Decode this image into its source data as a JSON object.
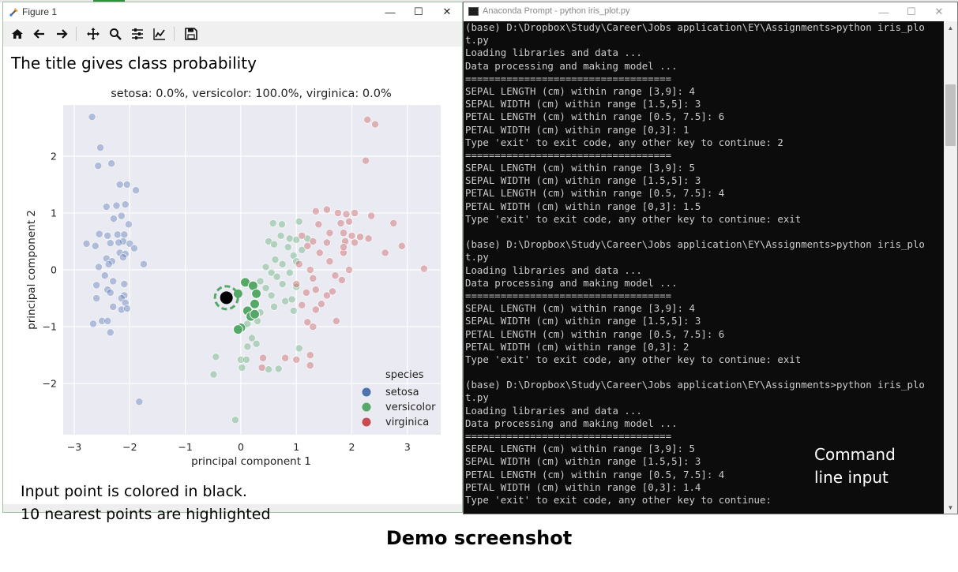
{
  "figure_window": {
    "title": "Figure 1",
    "window_buttons": {
      "minimize": "—",
      "maximize": "☐",
      "close": "✕"
    },
    "toolbar": [
      {
        "name": "home-icon"
      },
      {
        "name": "back-icon"
      },
      {
        "name": "forward-icon"
      },
      {
        "name": "pan-icon"
      },
      {
        "name": "zoom-icon"
      },
      {
        "name": "configure-subplots-icon"
      },
      {
        "name": "edit-axis-icon"
      },
      {
        "name": "save-icon"
      }
    ]
  },
  "annotations": {
    "top_note": "The title gives class probability",
    "bottom_note_1": "Input point is colored in black.",
    "bottom_note_2": "10 nearest points are highlighted",
    "command_label_1": "Command",
    "command_label_2": "line input",
    "caption": "Demo screenshot"
  },
  "chart_data": {
    "type": "scatter",
    "title": "setosa: 0.0%, versicolor: 100.0%, virginica: 0.0%",
    "xlabel": "principal component 1",
    "ylabel": "principal component 2",
    "xlim": [
      -3.2,
      3.6
    ],
    "ylim": [
      -2.9,
      2.9
    ],
    "xticks": [
      -3,
      -2,
      -1,
      0,
      1,
      2,
      3
    ],
    "yticks": [
      -2,
      -1,
      0,
      1,
      2
    ],
    "grid": true,
    "legend": {
      "title": "species",
      "position": "bottom-right",
      "entries": [
        "setosa",
        "versicolor",
        "virginica"
      ]
    },
    "colors": {
      "setosa": "#4c72b0",
      "versicolor": "#55a868",
      "virginica": "#c44e52",
      "input": "#000000"
    },
    "series": [
      {
        "name": "setosa",
        "points": [
          [
            -2.68,
            2.69
          ],
          [
            -2.53,
            2.15
          ],
          [
            -2.57,
            1.83
          ],
          [
            -2.33,
            1.87
          ],
          [
            -2.18,
            1.5
          ],
          [
            -2.05,
            1.5
          ],
          [
            -2.24,
            1.13
          ],
          [
            -2.08,
            1.15
          ],
          [
            -1.89,
            1.4
          ],
          [
            -2.42,
            1.11
          ],
          [
            -2.29,
            0.9
          ],
          [
            -2.15,
            0.95
          ],
          [
            -2.02,
            0.8
          ],
          [
            -2.55,
            0.63
          ],
          [
            -2.4,
            0.6
          ],
          [
            -2.22,
            0.62
          ],
          [
            -2.1,
            0.62
          ],
          [
            -2.12,
            0.5
          ],
          [
            -2.78,
            0.46
          ],
          [
            -2.62,
            0.42
          ],
          [
            -2.35,
            0.47
          ],
          [
            -2.2,
            0.48
          ],
          [
            -2.0,
            0.46
          ],
          [
            -1.92,
            0.38
          ],
          [
            -2.18,
            0.3
          ],
          [
            -2.08,
            0.28
          ],
          [
            -2.42,
            0.2
          ],
          [
            -2.12,
            0.22
          ],
          [
            -2.32,
            0.15
          ],
          [
            -2.56,
            0.05
          ],
          [
            -2.38,
            0.1
          ],
          [
            -1.75,
            0.1
          ],
          [
            -2.45,
            -0.1
          ],
          [
            -2.3,
            -0.2
          ],
          [
            -2.1,
            -0.25
          ],
          [
            -2.6,
            -0.27
          ],
          [
            -2.4,
            -0.35
          ],
          [
            -2.35,
            -0.4
          ],
          [
            -2.1,
            -0.45
          ],
          [
            -2.15,
            -0.5
          ],
          [
            -2.08,
            -0.58
          ],
          [
            -2.6,
            -0.5
          ],
          [
            -2.3,
            -0.65
          ],
          [
            -2.15,
            -0.7
          ],
          [
            -2.05,
            -0.68
          ],
          [
            -2.5,
            -0.9
          ],
          [
            -2.66,
            -0.95
          ],
          [
            -2.4,
            -0.9
          ],
          [
            -2.35,
            -1.1
          ],
          [
            -1.83,
            -2.32
          ]
        ]
      },
      {
        "name": "versicolor",
        "points": [
          [
            0.58,
            0.82
          ],
          [
            0.74,
            0.8
          ],
          [
            1.05,
            0.85
          ],
          [
            0.72,
            0.6
          ],
          [
            0.88,
            0.55
          ],
          [
            1.0,
            0.53
          ],
          [
            1.2,
            0.55
          ],
          [
            0.5,
            0.5
          ],
          [
            0.6,
            0.45
          ],
          [
            0.85,
            0.4
          ],
          [
            1.1,
            0.35
          ],
          [
            0.95,
            0.25
          ],
          [
            0.62,
            0.18
          ],
          [
            1.0,
            0.15
          ],
          [
            0.75,
            0.1
          ],
          [
            0.45,
            0.05
          ],
          [
            0.55,
            -0.05
          ],
          [
            0.65,
            -0.12
          ],
          [
            0.88,
            -0.05
          ],
          [
            0.35,
            -0.2
          ],
          [
            0.75,
            -0.25
          ],
          [
            1.0,
            -0.3
          ],
          [
            0.45,
            -0.32
          ],
          [
            0.55,
            -0.45
          ],
          [
            0.8,
            -0.55
          ],
          [
            0.6,
            -0.65
          ],
          [
            0.92,
            -0.52
          ],
          [
            0.35,
            -0.75
          ],
          [
            0.95,
            -0.72
          ],
          [
            0.18,
            -0.85
          ],
          [
            0.3,
            -0.9
          ],
          [
            0.05,
            -1.0
          ],
          [
            0.2,
            -1.2
          ],
          [
            0.28,
            -1.3
          ],
          [
            0.12,
            -1.35
          ],
          [
            0.0,
            -1.58
          ],
          [
            0.1,
            -1.58
          ],
          [
            1.05,
            -1.38
          ],
          [
            -0.45,
            -1.53
          ],
          [
            -0.49,
            -1.84
          ],
          [
            0.68,
            -1.74
          ],
          [
            0.5,
            -1.75
          ],
          [
            0.02,
            -1.72
          ],
          [
            -0.1,
            -2.64
          ],
          [
            0.12,
            -0.95
          ]
        ]
      },
      {
        "name": "virginica",
        "points": [
          [
            2.28,
            2.64
          ],
          [
            2.42,
            2.56
          ],
          [
            2.25,
            1.92
          ],
          [
            1.35,
            1.03
          ],
          [
            1.55,
            1.06
          ],
          [
            1.75,
            1.0
          ],
          [
            1.9,
            0.98
          ],
          [
            2.05,
            1.0
          ],
          [
            1.4,
            0.8
          ],
          [
            1.8,
            0.82
          ],
          [
            1.95,
            0.85
          ],
          [
            2.35,
            0.95
          ],
          [
            2.75,
            0.82
          ],
          [
            1.6,
            0.65
          ],
          [
            1.85,
            0.65
          ],
          [
            2.0,
            0.6
          ],
          [
            2.15,
            0.58
          ],
          [
            1.1,
            0.6
          ],
          [
            1.3,
            0.5
          ],
          [
            1.55,
            0.48
          ],
          [
            1.88,
            0.5
          ],
          [
            2.3,
            0.55
          ],
          [
            2.05,
            0.48
          ],
          [
            1.2,
            0.42
          ],
          [
            1.42,
            0.3
          ],
          [
            1.85,
            0.3
          ],
          [
            1.85,
            0.4
          ],
          [
            2.6,
            0.3
          ],
          [
            2.9,
            0.42
          ],
          [
            3.3,
            0.02
          ],
          [
            1.05,
            0.1
          ],
          [
            1.25,
            0.0
          ],
          [
            1.6,
            0.15
          ],
          [
            1.95,
            0.0
          ],
          [
            1.3,
            -0.15
          ],
          [
            1.7,
            -0.1
          ],
          [
            1.82,
            -0.18
          ],
          [
            1.0,
            -0.25
          ],
          [
            1.35,
            -0.35
          ],
          [
            1.18,
            -0.4
          ],
          [
            1.65,
            -0.38
          ],
          [
            1.55,
            -0.45
          ],
          [
            1.45,
            -0.6
          ],
          [
            1.1,
            -0.62
          ],
          [
            1.35,
            -0.7
          ],
          [
            1.72,
            -0.9
          ],
          [
            1.2,
            -0.92
          ],
          [
            1.3,
            -1.0
          ],
          [
            1.25,
            -1.5
          ],
          [
            1.0,
            -1.58
          ],
          [
            0.8,
            -1.55
          ],
          [
            1.25,
            -1.68
          ],
          [
            0.4,
            -1.55
          ],
          [
            0.38,
            -1.72
          ]
        ]
      },
      {
        "name": "highlighted-nearest",
        "points": [
          [
            -0.05,
            -0.42
          ],
          [
            0.08,
            -0.22
          ],
          [
            0.22,
            -0.28
          ],
          [
            0.28,
            -0.42
          ],
          [
            0.25,
            -0.6
          ],
          [
            0.12,
            -0.72
          ],
          [
            0.18,
            -0.82
          ],
          [
            0.25,
            -0.78
          ],
          [
            0.0,
            -1.02
          ],
          [
            -0.05,
            -1.05
          ]
        ]
      },
      {
        "name": "input",
        "points": [
          [
            -0.26,
            -0.49
          ]
        ]
      }
    ]
  },
  "console_window": {
    "title": "Anaconda Prompt - python  iris_plot.py",
    "window_buttons": {
      "minimize": "—",
      "maximize": "☐",
      "close": "✕"
    },
    "lines": [
      "(base) D:\\Dropbox\\Study\\Career\\Jobs application\\EY\\Assignments>python iris_plo",
      "t.py",
      "Loading libraries and data ...",
      "Data processing and making model ...",
      "===================================",
      "SEPAL LENGTH (cm) within range [3,9]: 4",
      "SEPAL WIDTH (cm) within range [1.5,5]: 3",
      "PETAL LENGTH (cm) within range [0.5, 7.5]: 6",
      "PETAL WIDTH (cm) within range [0,3]: 1",
      "Type 'exit' to exit code, any other key to continue: 2",
      "===================================",
      "SEPAL LENGTH (cm) within range [3,9]: 5",
      "SEPAL WIDTH (cm) within range [1.5,5]: 3",
      "PETAL LENGTH (cm) within range [0.5, 7.5]: 4",
      "PETAL WIDTH (cm) within range [0,3]: 1.5",
      "Type 'exit' to exit code, any other key to continue: exit",
      "",
      "(base) D:\\Dropbox\\Study\\Career\\Jobs application\\EY\\Assignments>python iris_plo",
      "t.py",
      "Loading libraries and data ...",
      "Data processing and making model ...",
      "===================================",
      "SEPAL LENGTH (cm) within range [3,9]: 4",
      "SEPAL WIDTH (cm) within range [1.5,5]: 3",
      "PETAL LENGTH (cm) within range [0.5, 7.5]: 6",
      "PETAL WIDTH (cm) within range [0,3]: 2",
      "Type 'exit' to exit code, any other key to continue: exit",
      "",
      "(base) D:\\Dropbox\\Study\\Career\\Jobs application\\EY\\Assignments>python iris_plo",
      "t.py",
      "Loading libraries and data ...",
      "Data processing and making model ...",
      "===================================",
      "SEPAL LENGTH (cm) within range [3,9]: 5",
      "SEPAL WIDTH (cm) within range [1.5,5]: 3",
      "PETAL LENGTH (cm) within range [0.5, 7.5]: 4",
      "PETAL WIDTH (cm) within range [0,3]: 1.4",
      "Type 'exit' to exit code, any other key to continue:"
    ]
  }
}
